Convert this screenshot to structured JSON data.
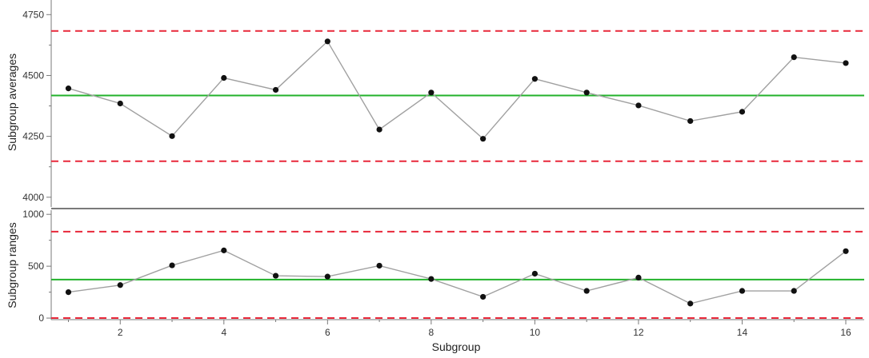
{
  "chart_data": [
    {
      "type": "line",
      "ylabel": "Subgroup averages",
      "ylim": [
        3960,
        4810
      ],
      "y_ticks": [
        "4000",
        "4250",
        "4500",
        "4750"
      ],
      "categories": [
        1,
        2,
        3,
        4,
        5,
        6,
        7,
        8,
        9,
        10,
        11,
        12,
        13,
        14,
        15,
        16
      ],
      "values": [
        4447,
        4385,
        4251,
        4490,
        4441,
        4640,
        4278,
        4430,
        4240,
        4486,
        4430,
        4377,
        4313,
        4351,
        4575,
        4551
      ],
      "reference_lines": [
        {
          "kind": "control-limit",
          "value": 4683
        },
        {
          "kind": "center-line",
          "value": 4418
        },
        {
          "kind": "control-limit",
          "value": 4148
        }
      ],
      "grid": false
    },
    {
      "type": "line",
      "ylabel": "Subgroup ranges",
      "xlabel": "Subgroup",
      "ylim": [
        -15,
        1040
      ],
      "y_ticks": [
        "0",
        "500",
        "1000"
      ],
      "x_ticks": [
        "2",
        "4",
        "6",
        "8",
        "10",
        "12",
        "14",
        "16"
      ],
      "categories": [
        1,
        2,
        3,
        4,
        5,
        6,
        7,
        8,
        9,
        10,
        11,
        12,
        13,
        14,
        15,
        16
      ],
      "values": [
        250,
        318,
        508,
        652,
        408,
        400,
        505,
        377,
        205,
        428,
        262,
        390,
        140,
        262,
        262,
        645
      ],
      "reference_lines": [
        {
          "kind": "control-limit",
          "value": 833
        },
        {
          "kind": "center-line",
          "value": 371
        },
        {
          "kind": "control-limit",
          "value": 0
        }
      ],
      "grid": false
    }
  ],
  "colors": {
    "control_limit": "#e8283a",
    "center_line": "#22b22b",
    "series_line": "#a0a0a0",
    "point": "#111111",
    "axis": "#7a7a7a",
    "divider": "#7a7a7a"
  }
}
